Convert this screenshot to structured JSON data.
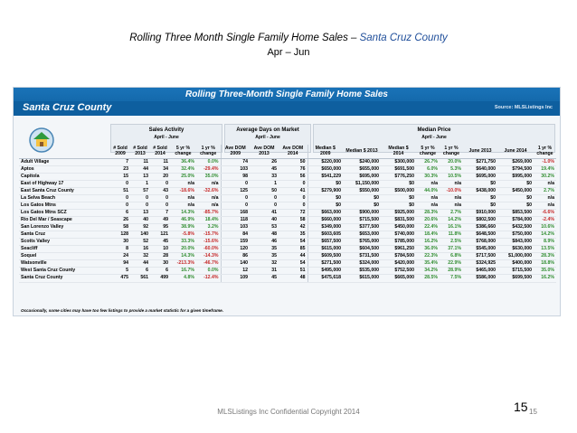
{
  "slide": {
    "title_prefix": "Rolling Three Month Single Family Home Sales – ",
    "title_highlight": "Santa Cruz County",
    "subtitle": "Apr – Jun",
    "footer": "MLSListings Inc Confidential Copyright 2014",
    "page_number_large": "15",
    "page_number_small": "15"
  },
  "table": {
    "banner_title": "Rolling Three-Month Single Family Home Sales",
    "region": "Santa Cruz County",
    "source": "Source: MLSListings Inc",
    "groups": [
      {
        "title": "Sales Activity",
        "subtitle": "April - June"
      },
      {
        "title": "Average Days on Market",
        "subtitle": "April - June"
      },
      {
        "title": "Median Price",
        "subtitle": "April - June"
      }
    ],
    "headers": [
      "# Sold 2009",
      "# Sold 2013",
      "# Sold 2014",
      "5 yr % change",
      "1 yr % change",
      "Ave DOM 2009",
      "Ave DOM 2013",
      "Ave DOM 2014",
      "Median $ 2009",
      "Median $ 2013",
      "Median $ 2014",
      "5 yr % change",
      "1 yr % change",
      "June 2013",
      "June 2014",
      "1 yr % change"
    ],
    "rows": [
      [
        "Adult Village",
        "7",
        "11",
        "11",
        "36.4%",
        "0.0%",
        "74",
        "26",
        "50",
        "$220,000",
        "$240,000",
        "$300,000",
        "26.7%",
        "20.0%",
        "$271,750",
        "$269,000",
        "-1.0%"
      ],
      [
        "Aptos",
        "23",
        "44",
        "34",
        "32.4%",
        "-29.4%",
        "103",
        "45",
        "76",
        "$650,000",
        "$655,000",
        "$691,500",
        "6.0%",
        "5.3%",
        "$640,000",
        "$794,500",
        "19.4%"
      ],
      [
        "Capitola",
        "15",
        "13",
        "20",
        "25.0%",
        "35.0%",
        "98",
        "33",
        "56",
        "$541,229",
        "$695,000",
        "$776,250",
        "30.3%",
        "10.5%",
        "$695,000",
        "$995,000",
        "30.2%"
      ],
      [
        "East of Highway 17",
        "0",
        "1",
        "0",
        "n/a",
        "n/a",
        "0",
        "1",
        "0",
        "$0",
        "$1,150,000",
        "$0",
        "n/a",
        "n/a",
        "$0",
        "$0",
        "n/a"
      ],
      [
        "East Santa Cruz County",
        "51",
        "57",
        "43",
        "-18.6%",
        "-32.6%",
        "125",
        "50",
        "41",
        "$279,900",
        "$550,000",
        "$500,000",
        "44.0%",
        "-10.0%",
        "$438,000",
        "$450,000",
        "2.7%"
      ],
      [
        "La Selva Beach",
        "0",
        "0",
        "0",
        "n/a",
        "n/a",
        "0",
        "0",
        "0",
        "$0",
        "$0",
        "$0",
        "n/a",
        "n/a",
        "$0",
        "$0",
        "n/a"
      ],
      [
        "Los Gatos Mtns",
        "0",
        "0",
        "0",
        "n/a",
        "n/a",
        "0",
        "0",
        "0",
        "$0",
        "$0",
        "$0",
        "n/a",
        "n/a",
        "$0",
        "$0",
        "n/a"
      ],
      [
        "Los Gatos Mtns SCZ",
        "6",
        "13",
        "7",
        "14.3%",
        "-85.7%",
        "168",
        "41",
        "72",
        "$663,000",
        "$900,000",
        "$925,000",
        "28.3%",
        "2.7%",
        "$910,000",
        "$853,500",
        "-6.6%"
      ],
      [
        "Rio Del Mar / Seascape",
        "26",
        "40",
        "49",
        "46.9%",
        "18.4%",
        "118",
        "40",
        "58",
        "$660,000",
        "$715,500",
        "$831,500",
        "20.6%",
        "14.2%",
        "$802,500",
        "$784,000",
        "-2.4%"
      ],
      [
        "San Lorenzo Valley",
        "58",
        "92",
        "95",
        "38.9%",
        "3.2%",
        "103",
        "53",
        "42",
        "$349,000",
        "$377,500",
        "$450,000",
        "22.4%",
        "16.1%",
        "$386,660",
        "$432,500",
        "10.6%"
      ],
      [
        "Santa Cruz",
        "128",
        "140",
        "121",
        "-5.8%",
        "-15.7%",
        "84",
        "48",
        "35",
        "$603,605",
        "$653,000",
        "$740,000",
        "18.4%",
        "11.8%",
        "$648,500",
        "$750,000",
        "14.2%"
      ],
      [
        "Scotts Valley",
        "30",
        "52",
        "45",
        "33.3%",
        "-15.6%",
        "159",
        "46",
        "54",
        "$657,500",
        "$765,000",
        "$785,000",
        "16.2%",
        "2.5%",
        "$768,000",
        "$843,000",
        "8.9%"
      ],
      [
        "Seacliff",
        "8",
        "16",
        "10",
        "20.0%",
        "-60.0%",
        "120",
        "35",
        "85",
        "$615,000",
        "$604,500",
        "$961,250",
        "36.0%",
        "37.1%",
        "$545,000",
        "$630,000",
        "13.5%"
      ],
      [
        "Soquel",
        "24",
        "32",
        "28",
        "14.3%",
        "-14.3%",
        "86",
        "35",
        "44",
        "$609,500",
        "$731,500",
        "$784,500",
        "22.3%",
        "6.8%",
        "$717,500",
        "$1,000,000",
        "28.3%"
      ],
      [
        "Watsonville",
        "94",
        "44",
        "30",
        "-213.3%",
        "-46.7%",
        "140",
        "32",
        "54",
        "$271,500",
        "$324,000",
        "$420,000",
        "35.4%",
        "22.9%",
        "$324,925",
        "$400,000",
        "18.8%"
      ],
      [
        "West Santa Cruz County",
        "5",
        "6",
        "6",
        "16.7%",
        "0.0%",
        "12",
        "31",
        "51",
        "$495,000",
        "$535,000",
        "$752,500",
        "34.2%",
        "28.9%",
        "$465,000",
        "$715,500",
        "35.0%"
      ]
    ],
    "total": [
      "Santa Cruz County",
      "475",
      "561",
      "499",
      "4.8%",
      "-12.4%",
      "109",
      "45",
      "48",
      "$475,618",
      "$615,000",
      "$665,000",
      "28.5%",
      "7.5%",
      "$586,000",
      "$699,500",
      "16.2%"
    ],
    "note": "Occasionally, some cities may have too few listings to provide a market statistic for a given timeframe."
  },
  "colors": {
    "banner": "#1a73b8",
    "positive": "#2e8b2e",
    "negative": "#c52727",
    "title_highlight": "#1f4e9a"
  }
}
